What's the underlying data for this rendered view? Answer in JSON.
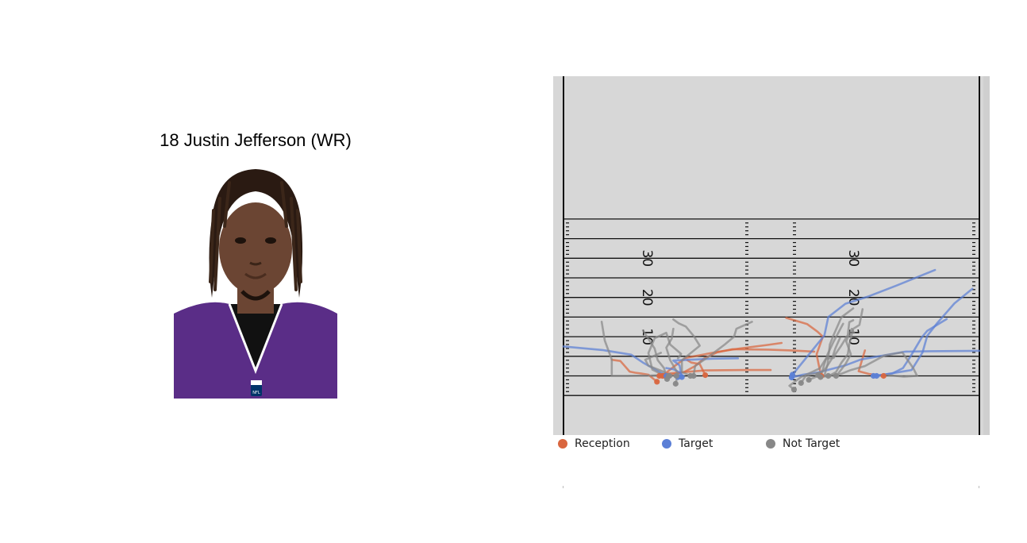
{
  "player": {
    "title": "18 Justin Jefferson (WR)"
  },
  "headshot": {
    "jersey_color": "#5a2d87",
    "skin_color": "#6b4533",
    "logo_text": "NFL"
  },
  "colors": {
    "field": "#d7d7d7",
    "field_edge": "#cfcfcf",
    "yard_line": "#111111",
    "reception": "#d9663f",
    "target": "#5b7fd6",
    "not_target": "#888888"
  },
  "legend": [
    {
      "label": "Reception",
      "color": "#d9663f"
    },
    {
      "label": "Target",
      "color": "#5b7fd6"
    },
    {
      "label": "Not Target",
      "color": "#888888"
    }
  ],
  "chart_data": {
    "type": "line",
    "title": "",
    "x_range": [
      -26.7,
      26.7
    ],
    "y_range": [
      -5,
      40
    ],
    "yard_markers": [
      {
        "label": "30",
        "y": 30
      },
      {
        "label": "20",
        "y": 20
      },
      {
        "label": "10",
        "y": 10
      }
    ],
    "series": [
      {
        "name": "Reception",
        "color": "#d9663f",
        "routes": [
          {
            "status": "Reception",
            "points": [
              [
                -8.5,
                0.2
              ],
              [
                -9.2,
                3.0
              ],
              [
                -10.3,
                3.4
              ],
              [
                -10.8,
                4.0
              ]
            ]
          },
          {
            "status": "Reception",
            "points": [
              [
                -14.7,
                -1.5
              ],
              [
                -15.8,
                0.3
              ],
              [
                -16.7,
                0.6
              ],
              [
                -17.5,
                0.8
              ],
              [
                -18.2,
                1.1
              ],
              [
                -19.4,
                3.8
              ],
              [
                -20.5,
                4.1
              ]
            ]
          },
          {
            "status": "Reception",
            "points": [
              [
                -14.4,
                0.0
              ],
              [
                -13.3,
                0.6
              ],
              [
                -11.0,
                1.0
              ],
              [
                -8.5,
                1.4
              ],
              [
                -3.5,
                1.5
              ],
              [
                -0.1,
                1.5
              ]
            ]
          },
          {
            "status": "Reception",
            "points": [
              [
                -14.0,
                0.0
              ],
              [
                -12.5,
                2.4
              ],
              [
                -11.0,
                4.6
              ],
              [
                -7.0,
                6.1
              ],
              [
                -4.0,
                7.0
              ],
              [
                -0.5,
                7.9
              ],
              [
                1.3,
                8.4
              ]
            ]
          },
          {
            "status": "Reception",
            "points": [
              [
                -13.7,
                0.0
              ],
              [
                -11.2,
                1.0
              ],
              [
                -9.8,
                2.5
              ],
              [
                -8.7,
                4.4
              ],
              [
                -7.0,
                6.0
              ],
              [
                -5.0,
                6.8
              ],
              [
                -0.4,
                6.7
              ],
              [
                2.5,
                6.5
              ],
              [
                5.5,
                6.2
              ]
            ]
          },
          {
            "status": "Reception",
            "points": [
              [
                6.4,
                0.0
              ],
              [
                6.1,
                2.5
              ],
              [
                5.8,
                5.5
              ],
              [
                6.6,
                10.0
              ],
              [
                5.9,
                11.3
              ],
              [
                4.6,
                13.2
              ],
              [
                1.9,
                14.8
              ]
            ]
          },
          {
            "status": "Reception",
            "points": [
              [
                14.4,
                0.0
              ],
              [
                12.5,
                0.5
              ],
              [
                11.2,
                1.2
              ],
              [
                12.0,
                6.5
              ]
            ]
          }
        ]
      },
      {
        "name": "Target",
        "color": "#5b7fd6",
        "routes": [
          {
            "status": "Target",
            "points": [
              [
                -13.5,
                0.0
              ],
              [
                -14.8,
                1.5
              ],
              [
                -16.5,
                3.4
              ],
              [
                -18.0,
                5.4
              ],
              [
                -21.7,
                6.6
              ],
              [
                -26.7,
                7.5
              ]
            ]
          },
          {
            "status": "Target",
            "points": [
              [
                -11.5,
                -0.3
              ],
              [
                -11.8,
                2.7
              ],
              [
                -12.6,
                3.9
              ],
              [
                -7.5,
                4.4
              ],
              [
                -4.3,
                4.5
              ]
            ]
          },
          {
            "status": "Target",
            "points": [
              [
                -12.0,
                -0.3
              ],
              [
                -11.6,
                0.7
              ],
              [
                -12.6,
                1.7
              ],
              [
                -13.5,
                2.0
              ]
            ]
          },
          {
            "status": "Target",
            "points": [
              [
                2.6,
                -0.4
              ],
              [
                4.0,
                0.3
              ],
              [
                6.0,
                0.9
              ],
              [
                9.5,
                2.7
              ],
              [
                11.5,
                4.2
              ],
              [
                17.2,
                6.2
              ],
              [
                20.5,
                6.3
              ],
              [
                26.7,
                6.4
              ]
            ]
          },
          {
            "status": "Target",
            "points": [
              [
                2.7,
                0.3
              ],
              [
                6.8,
                10.3
              ],
              [
                7.3,
                15.0
              ],
              [
                9.5,
                18.4
              ],
              [
                12.5,
                20.3
              ],
              [
                16.0,
                23.0
              ],
              [
                21.0,
                27.0
              ]
            ]
          },
          {
            "status": "Target",
            "points": [
              [
                13.1,
                0.0
              ],
              [
                15.5,
                0.6
              ],
              [
                16.9,
                2.0
              ],
              [
                17.8,
                4.8
              ],
              [
                19.3,
                9.8
              ],
              [
                20.0,
                11.5
              ],
              [
                22.5,
                14.5
              ]
            ]
          },
          {
            "status": "Target",
            "points": [
              [
                13.5,
                0.0
              ],
              [
                18.0,
                1.5
              ],
              [
                19.4,
                6.0
              ],
              [
                20.0,
                10.2
              ],
              [
                21.3,
                13.5
              ],
              [
                23.5,
                18.5
              ],
              [
                25.8,
                22.2
              ]
            ]
          }
        ]
      },
      {
        "name": "Not Target",
        "color": "#888888",
        "routes": [
          {
            "status": "Not Target",
            "points": [
              [
                -12.2,
                0.0
              ],
              [
                -13.5,
                0.3
              ],
              [
                -15.5,
                0.1
              ],
              [
                -18.5,
                0.0
              ],
              [
                -20.5,
                0.0
              ],
              [
                -20.5,
                4.2
              ],
              [
                -21.4,
                9.0
              ],
              [
                -21.8,
                13.8
              ]
            ]
          },
          {
            "status": "Not Target",
            "points": [
              [
                -13.1,
                0.0
              ],
              [
                -14.2,
                0.5
              ],
              [
                -15.3,
                1.6
              ],
              [
                -15.8,
                5.8
              ],
              [
                -15.0,
                9.6
              ],
              [
                -13.5,
                11.0
              ],
              [
                -13.0,
                8.0
              ],
              [
                -11.6,
                5.6
              ],
              [
                -12.0,
                4.5
              ]
            ]
          },
          {
            "status": "Not Target",
            "points": [
              [
                -13.4,
                -0.8
              ],
              [
                -13.8,
                2.0
              ],
              [
                -14.6,
                4.0
              ],
              [
                -15.0,
                7.0
              ],
              [
                -16.5,
                11.6
              ]
            ]
          },
          {
            "status": "Not Target",
            "points": [
              [
                -12.3,
                -2.0
              ],
              [
                -12.0,
                0.6
              ],
              [
                -13.0,
                4.0
              ],
              [
                -13.5,
                7.2
              ],
              [
                -12.8,
                9.5
              ],
              [
                -12.6,
                12.0
              ]
            ]
          },
          {
            "status": "Not Target",
            "points": [
              [
                -10.4,
                0.0
              ],
              [
                -11.5,
                1.0
              ],
              [
                -11.5,
                4.0
              ],
              [
                -9.2,
                7.7
              ],
              [
                -10.0,
                10.2
              ],
              [
                -11.0,
                12.6
              ],
              [
                -11.9,
                13.4
              ],
              [
                -12.6,
                14.4
              ]
            ]
          },
          {
            "status": "Not Target",
            "points": [
              [
                -10.0,
                0.0
              ],
              [
                -9.8,
                2.5
              ],
              [
                -8.0,
                5.0
              ],
              [
                -6.0,
                8.0
              ],
              [
                -4.8,
                10.0
              ],
              [
                -4.5,
                12.0
              ],
              [
                -2.5,
                13.8
              ]
            ]
          },
          {
            "status": "Not Target",
            "points": [
              [
                -13.2,
                0.0
              ],
              [
                -14.0,
                1.2
              ],
              [
                -15.8,
                2.6
              ],
              [
                -16.2,
                4.1
              ],
              [
                -14.2,
                5.9
              ]
            ]
          },
          {
            "status": "Not Target",
            "points": [
              [
                2.9,
                -3.5
              ],
              [
                2.3,
                -2.5
              ],
              [
                3.8,
                -0.3
              ],
              [
                5.0,
                0.8
              ],
              [
                6.2,
                1.9
              ],
              [
                7.0,
                4.4
              ],
              [
                8.0,
                4.6
              ],
              [
                8.2,
                5.5
              ],
              [
                8.9,
                7.5
              ],
              [
                9.8,
                10.4
              ],
              [
                10.0,
                13.7
              ],
              [
                10.5,
                14.2
              ]
            ]
          },
          {
            "status": "Not Target",
            "points": [
              [
                3.8,
                -1.8
              ],
              [
                4.4,
                0.0
              ],
              [
                6.5,
                1.0
              ],
              [
                6.8,
                3.0
              ],
              [
                7.2,
                5.5
              ],
              [
                8.0,
                8.8
              ],
              [
                9.2,
                13.3
              ]
            ]
          },
          {
            "status": "Not Target",
            "points": [
              [
                6.0,
                0.2
              ],
              [
                6.8,
                0.0
              ],
              [
                7.2,
                3.0
              ],
              [
                7.5,
                8.0
              ],
              [
                8.0,
                10.5
              ],
              [
                9.0,
                15.0
              ],
              [
                10.5,
                17.2
              ]
            ]
          },
          {
            "status": "Not Target",
            "points": [
              [
                6.3,
                -0.3
              ],
              [
                7.4,
                0.0
              ],
              [
                8.3,
                1.0
              ],
              [
                9.0,
                3.4
              ],
              [
                9.8,
                5.5
              ],
              [
                10.0,
                8.0
              ],
              [
                10.5,
                12.0
              ],
              [
                11.3,
                13.0
              ],
              [
                11.7,
                17.0
              ]
            ]
          },
          {
            "status": "Not Target",
            "points": [
              [
                7.3,
                0.0
              ],
              [
                8.5,
                0.4
              ],
              [
                9.5,
                3.0
              ],
              [
                10.2,
                5.5
              ],
              [
                9.6,
                8.8
              ],
              [
                10.3,
                12.0
              ],
              [
                10.6,
                11.0
              ]
            ]
          },
          {
            "status": "Not Target",
            "points": [
              [
                4.8,
                -1.0
              ],
              [
                6.0,
                0.0
              ],
              [
                7.0,
                2.0
              ],
              [
                7.8,
                4.5
              ],
              [
                8.2,
                7.0
              ],
              [
                8.8,
                9.7
              ]
            ]
          },
          {
            "status": "Not Target",
            "points": [
              [
                8.3,
                0.0
              ],
              [
                10.2,
                1.5
              ],
              [
                12.0,
                2.5
              ],
              [
                14.5,
                5.2
              ],
              [
                16.8,
                6.0
              ],
              [
                18.2,
                2.0
              ],
              [
                18.7,
                0.0
              ],
              [
                17.0,
                -0.2
              ],
              [
                14.8,
                0.2
              ]
            ]
          }
        ]
      }
    ]
  }
}
